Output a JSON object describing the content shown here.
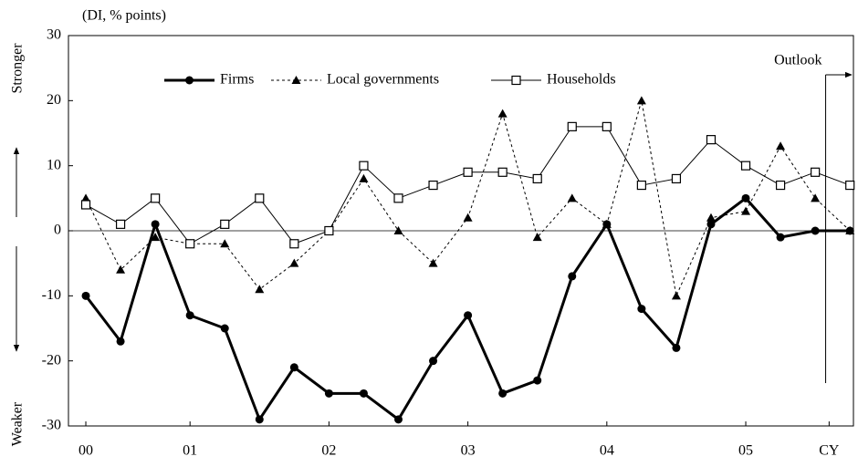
{
  "chart_data": {
    "type": "line",
    "unit_label": "(DI, % points)",
    "y_label_top": "Stronger",
    "y_label_bottom": "Weaker",
    "legend": "top",
    "grid": false,
    "x": [
      0,
      1,
      2,
      3,
      4,
      5,
      6,
      7,
      8,
      9,
      10,
      11,
      12,
      13,
      14,
      15,
      16,
      17,
      18,
      19,
      20,
      21,
      22
    ],
    "xlim": [
      -0.5,
      22.1
    ],
    "xticks": [
      {
        "value": 0,
        "label": "00"
      },
      {
        "value": 3,
        "label": "01"
      },
      {
        "value": 7,
        "label": "02"
      },
      {
        "value": 11,
        "label": "03"
      },
      {
        "value": 15,
        "label": "04"
      },
      {
        "value": 19,
        "label": "05"
      },
      {
        "value": 21.4,
        "label": "CY"
      }
    ],
    "ylim": [
      -30,
      30
    ],
    "yticks": [
      -30,
      -20,
      -10,
      0,
      10,
      20,
      30
    ],
    "annotation": {
      "text": "Outlook",
      "x": 21.3
    },
    "series": [
      {
        "name": "Firms",
        "color": "#000000",
        "marker": "circle",
        "dash": "solid",
        "width": 3,
        "values": [
          -10,
          -17,
          1,
          -13,
          -15,
          -29,
          -21,
          -25,
          -25,
          -29,
          -20,
          -13,
          -25,
          -23,
          -7,
          1,
          -12,
          -18,
          1,
          5,
          -1,
          0,
          0
        ]
      },
      {
        "name": "Local governments",
        "color": "#000000",
        "marker": "triangle",
        "dash": "dotted",
        "width": 1,
        "values": [
          5,
          -6,
          -1,
          -2,
          -2,
          -9,
          -5,
          0,
          8,
          0,
          -5,
          2,
          18,
          -1,
          5,
          1,
          20,
          -10,
          2,
          3,
          13,
          5,
          0
        ]
      },
      {
        "name": "Households",
        "color": "#000000",
        "marker": "square",
        "dash": "solid",
        "width": 1,
        "values": [
          4,
          1,
          5,
          -2,
          1,
          5,
          -2,
          0,
          10,
          5,
          7,
          9,
          9,
          8,
          16,
          16,
          7,
          8,
          14,
          10,
          7,
          9,
          7
        ]
      }
    ]
  }
}
